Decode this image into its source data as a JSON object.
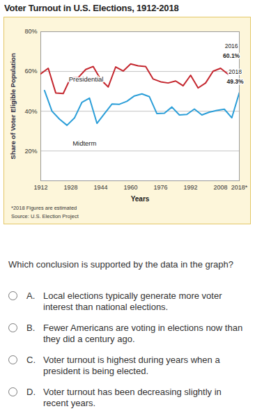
{
  "chart_data": {
    "type": "line",
    "title": "Voter Turnout in U.S. Elections, 1912-2018",
    "y_label": "Share of Voter Eligible Population",
    "x_label": "Years",
    "xlim": [
      1912,
      2018
    ],
    "xticks": [
      1912,
      1928,
      1944,
      1960,
      1976,
      1992,
      2008,
      {
        "value": 2018,
        "label": "2018*"
      }
    ],
    "ylim": [
      5,
      80
    ],
    "yticks": [
      {
        "value": 20,
        "label": "20%"
      },
      {
        "value": 40,
        "label": "40%"
      },
      {
        "value": 60,
        "label": "60%"
      },
      {
        "value": 80,
        "label": "80%"
      }
    ],
    "grid": true,
    "series": [
      {
        "name": "Presidential",
        "color": "#c4262e",
        "x": [
          1912,
          1916,
          1920,
          1924,
          1928,
          1932,
          1936,
          1940,
          1944,
          1948,
          1952,
          1956,
          1960,
          1964,
          1968,
          1972,
          1976,
          1980,
          1984,
          1988,
          1992,
          1996,
          2000,
          2004,
          2008,
          2012,
          2016
        ],
        "values": [
          58.8,
          61.6,
          49.2,
          48.9,
          56.9,
          56.9,
          61.0,
          62.5,
          55.9,
          52.2,
          62.3,
          60.2,
          63.8,
          62.8,
          62.5,
          56.2,
          54.8,
          54.2,
          55.2,
          52.8,
          58.1,
          51.7,
          54.2,
          60.1,
          61.6,
          58.6,
          60.1
        ]
      },
      {
        "name": "Midterm",
        "color": "#2b9ed8",
        "x": [
          1914,
          1918,
          1922,
          1926,
          1930,
          1934,
          1938,
          1942,
          1946,
          1950,
          1954,
          1958,
          1962,
          1966,
          1970,
          1974,
          1978,
          1982,
          1986,
          1990,
          1994,
          1998,
          2002,
          2006,
          2010,
          2014,
          2018
        ],
        "values": [
          50.4,
          40.0,
          36.0,
          32.9,
          36.6,
          44.5,
          46.6,
          33.9,
          38.8,
          43.6,
          43.5,
          45.0,
          47.7,
          48.7,
          47.3,
          38.8,
          39.0,
          42.1,
          38.1,
          38.4,
          41.1,
          38.1,
          39.5,
          40.4,
          41.0,
          36.7,
          49.3
        ]
      }
    ],
    "annotations": [
      {
        "x": 2016,
        "y": 60.1,
        "text": [
          "2016",
          "60.1%"
        ]
      },
      {
        "x": 2018,
        "y": 49.3,
        "text": [
          "2018",
          "49.3%"
        ]
      }
    ],
    "notes": [
      "*2018 Figures are estimated",
      "Source: U.S. Election Project"
    ]
  },
  "question": {
    "prompt": "Which conclusion is supported by the data in the graph?",
    "options": [
      {
        "letter": "A.",
        "text": "Local elections typically generate more voter interest than national elections."
      },
      {
        "letter": "B.",
        "text": "Fewer Americans are voting in elections now than they did a century ago."
      },
      {
        "letter": "C.",
        "text": "Voter turnout is highest during years when a president is being elected."
      },
      {
        "letter": "D.",
        "text": "Voter turnout has been decreasing slightly in recent years."
      }
    ]
  }
}
